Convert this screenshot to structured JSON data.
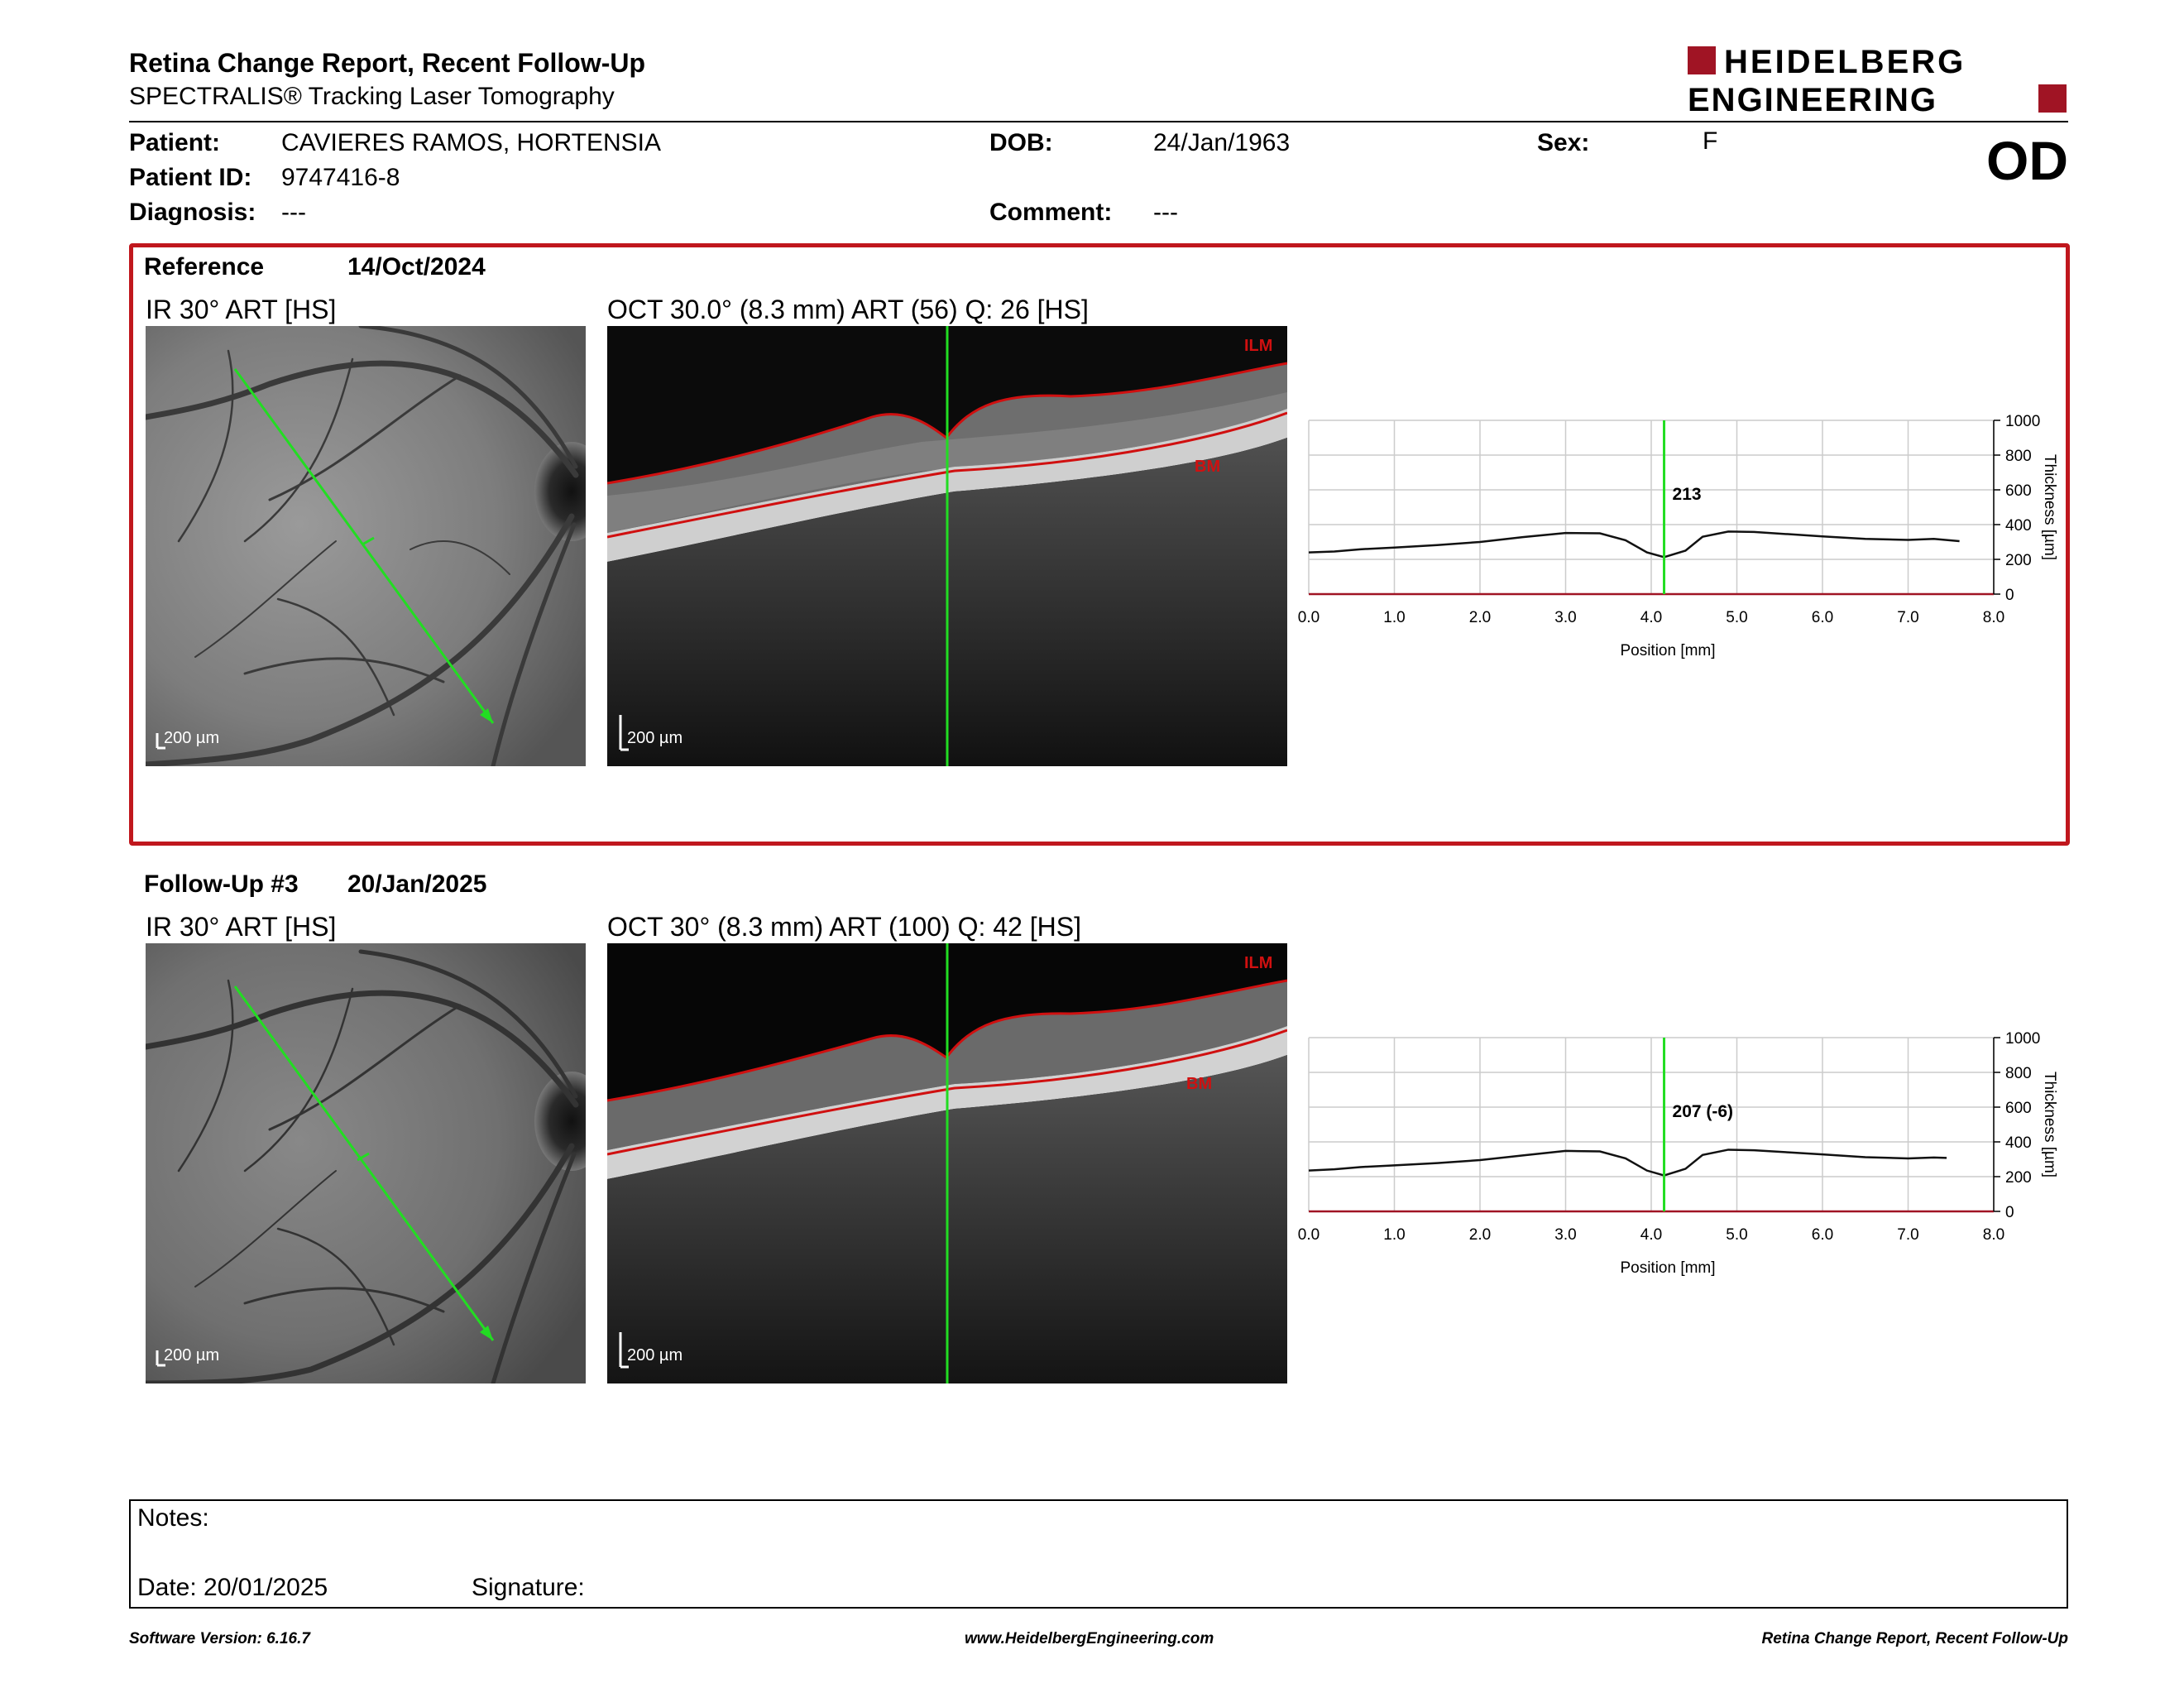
{
  "header": {
    "title": "Retina Change Report, Recent Follow-Up",
    "subtitle": "SPECTRALIS® Tracking Laser Tomography",
    "logo_line1": "HEIDELBERG",
    "logo_line2": "ENGINEERING",
    "eye": "OD"
  },
  "patient": {
    "name_label": "Patient:",
    "name": "CAVIERES RAMOS, HORTENSIA",
    "id_label": "Patient ID:",
    "id": "9747416-8",
    "diagnosis_label": "Diagnosis:",
    "diagnosis": "---",
    "dob_label": "DOB:",
    "dob": "24/Jan/1963",
    "comment_label": "Comment:",
    "comment": "---",
    "sex_label": "Sex:",
    "sex": "F"
  },
  "reference": {
    "label": "Reference",
    "date": "14/Oct/2024",
    "ir_title": "IR 30° ART [HS]",
    "oct_title": "OCT 30.0° (8.3 mm) ART (56) Q: 26 [HS]",
    "scale_ir": "200 µm",
    "scale_oct": "200 µm",
    "ilm_label": "ILM",
    "bm_label": "BM",
    "thickness_label": "213"
  },
  "followup": {
    "label": "Follow-Up #3",
    "date": "20/Jan/2025",
    "ir_title": "IR 30° ART [HS]",
    "oct_title": "OCT 30° (8.3 mm) ART (100) Q: 42 [HS]",
    "scale_ir": "200 µm",
    "scale_oct": "200 µm",
    "ilm_label": "ILM",
    "bm_label": "BM",
    "thickness_label": "207 (-6)"
  },
  "chart_data": [
    {
      "type": "line",
      "xlabel": "Position [mm]",
      "ylabel": "Thickness [µm]",
      "xlim": [
        0,
        8
      ],
      "ylim": [
        0,
        1000
      ],
      "xticks": [
        "0.0",
        "1.0",
        "2.0",
        "3.0",
        "4.0",
        "5.0",
        "6.0",
        "7.0",
        "8.0"
      ],
      "yticks": [
        "0",
        "200",
        "400",
        "600",
        "800",
        "1000"
      ],
      "cursor_x": 4.15,
      "grid": true,
      "series": [
        {
          "x": [
            0,
            0.3,
            0.6,
            1.0,
            1.5,
            2.0,
            2.5,
            3.0,
            3.4,
            3.7,
            3.95,
            4.15,
            4.4,
            4.6,
            4.9,
            5.2,
            5.6,
            6.0,
            6.5,
            7.0,
            7.3,
            7.6
          ],
          "values": [
            240,
            245,
            258,
            268,
            282,
            300,
            328,
            352,
            350,
            310,
            240,
            213,
            250,
            330,
            360,
            358,
            345,
            332,
            318,
            312,
            318,
            305
          ]
        }
      ]
    },
    {
      "type": "line",
      "xlabel": "Position [mm]",
      "ylabel": "Thickness [µm]",
      "xlim": [
        0,
        8
      ],
      "ylim": [
        0,
        1000
      ],
      "xticks": [
        "0.0",
        "1.0",
        "2.0",
        "3.0",
        "4.0",
        "5.0",
        "6.0",
        "7.0",
        "8.0"
      ],
      "yticks": [
        "0",
        "200",
        "400",
        "600",
        "800",
        "1000"
      ],
      "cursor_x": 4.15,
      "grid": true,
      "series": [
        {
          "x": [
            0,
            0.3,
            0.6,
            1.0,
            1.5,
            2.0,
            2.5,
            3.0,
            3.4,
            3.7,
            3.95,
            4.15,
            4.4,
            4.6,
            4.9,
            5.2,
            5.6,
            6.0,
            6.5,
            7.0,
            7.3,
            7.45
          ],
          "values": [
            235,
            242,
            255,
            265,
            278,
            295,
            322,
            348,
            345,
            305,
            235,
            207,
            245,
            325,
            355,
            352,
            340,
            328,
            312,
            305,
            310,
            308
          ]
        }
      ]
    }
  ],
  "notes": {
    "notes_label": "Notes:",
    "date_label": "Date: 20/01/2025",
    "signature_label": "Signature:"
  },
  "footer": {
    "software": "Software Version: 6.16.7",
    "website": "www.HeidelbergEngineering.com",
    "report": "Retina Change Report, Recent Follow-Up"
  },
  "colors": {
    "brand_red": "#a01424",
    "frame_red": "#c0171d",
    "scan_green": "#22dd22",
    "layer_red": "#d01010"
  }
}
